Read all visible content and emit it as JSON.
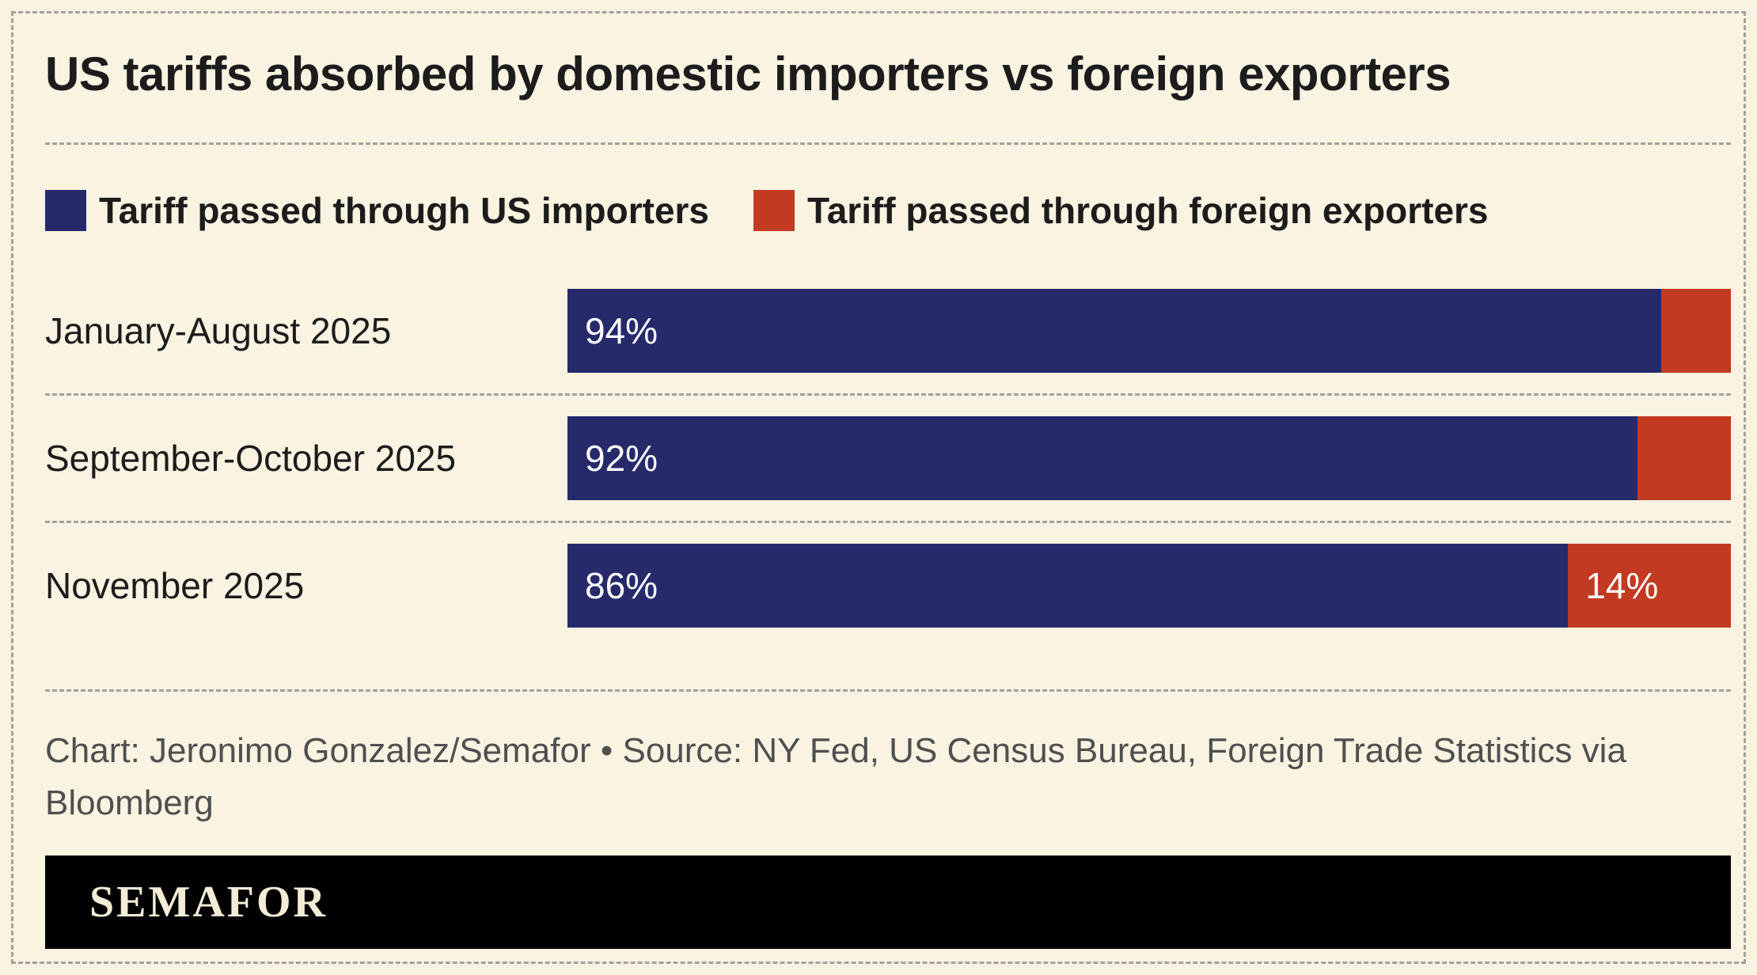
{
  "chart_data": {
    "type": "bar",
    "orientation": "horizontal",
    "stacked": true,
    "title": "US tariffs absorbed by domestic importers vs foreign exporters",
    "categories": [
      "January-August 2025",
      "September-October 2025",
      "November 2025"
    ],
    "series": [
      {
        "name": "Tariff passed through US importers",
        "color": "#262a6b",
        "values": [
          94,
          92,
          86
        ]
      },
      {
        "name": "Tariff passed through foreign exporters",
        "color": "#c23a22",
        "values": [
          6,
          8,
          14
        ]
      }
    ],
    "value_labels": [
      {
        "importer": "94%",
        "exporter": ""
      },
      {
        "importer": "92%",
        "exporter": ""
      },
      {
        "importer": "86%",
        "exporter": "14%"
      }
    ],
    "xlim": [
      0,
      100
    ],
    "grid": false,
    "legend_position": "top"
  },
  "footer": {
    "credit": "Chart: Jeronimo Gonzalez/Semafor • Source: NY Fed, US Census Bureau, Foreign Trade Statistics via Bloomberg"
  },
  "branding": {
    "logo_text": "SEMAFOR",
    "bar_color": "#000000",
    "logo_text_color": "#f3ecd6"
  },
  "theme": {
    "background": "#f9f3e2",
    "divider_color": "#a6a29a",
    "text_color": "#1c1c1c",
    "credit_color": "#4f4f4f"
  }
}
